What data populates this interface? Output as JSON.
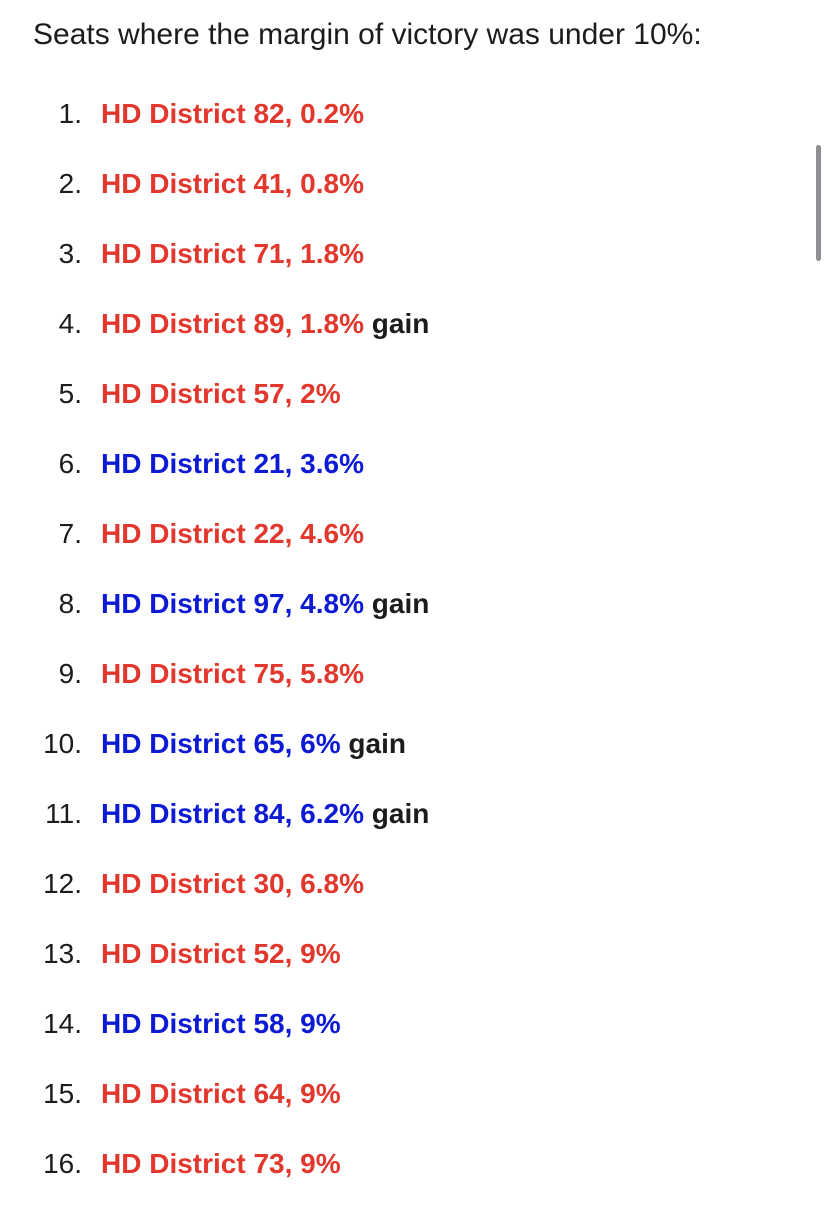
{
  "heading": "Seats where the margin of victory was under 10%:",
  "items": [
    {
      "marker": "1.",
      "text": "HD District 82, 0.2%",
      "color": "#e2372c"
    },
    {
      "marker": "2.",
      "text": "HD District 41, 0.8%",
      "color": "#e2372c"
    },
    {
      "marker": "3.",
      "text": "HD District 71, 1.8%",
      "color": "#e2372c"
    },
    {
      "marker": "4.",
      "text": "HD District 89, 1.8%",
      "color": "#e2372c",
      "note": "gain"
    },
    {
      "marker": "5.",
      "text": "HD District 57, 2%",
      "color": "#e2372c"
    },
    {
      "marker": "6.",
      "text": "HD District 21, 3.6%",
      "color": "#0c1ad4"
    },
    {
      "marker": "7.",
      "text": "HD District 22, 4.6%",
      "color": "#e2372c"
    },
    {
      "marker": "8.",
      "text": "HD District 97, 4.8%",
      "color": "#0c1ad4",
      "note": "gain"
    },
    {
      "marker": "9.",
      "text": "HD District 75, 5.8%",
      "color": "#e2372c"
    },
    {
      "marker": "10.",
      "text": "HD District 65, 6%",
      "color": "#0c1ad4",
      "note": "gain"
    },
    {
      "marker": "11.",
      "text": "HD District 84, 6.2%",
      "color": "#0c1ad4",
      "note": "gain"
    },
    {
      "marker": "12.",
      "text": "HD District 30, 6.8%",
      "color": "#e2372c"
    },
    {
      "marker": "13.",
      "text": "HD District 52, 9%",
      "color": "#e2372c"
    },
    {
      "marker": "14.",
      "text": "HD District 58, 9%",
      "color": "#0c1ad4"
    },
    {
      "marker": "15.",
      "text": "HD District 64, 9%",
      "color": "#e2372c"
    },
    {
      "marker": "16.",
      "text": "HD District 73, 9%",
      "color": "#e2372c"
    }
  ]
}
